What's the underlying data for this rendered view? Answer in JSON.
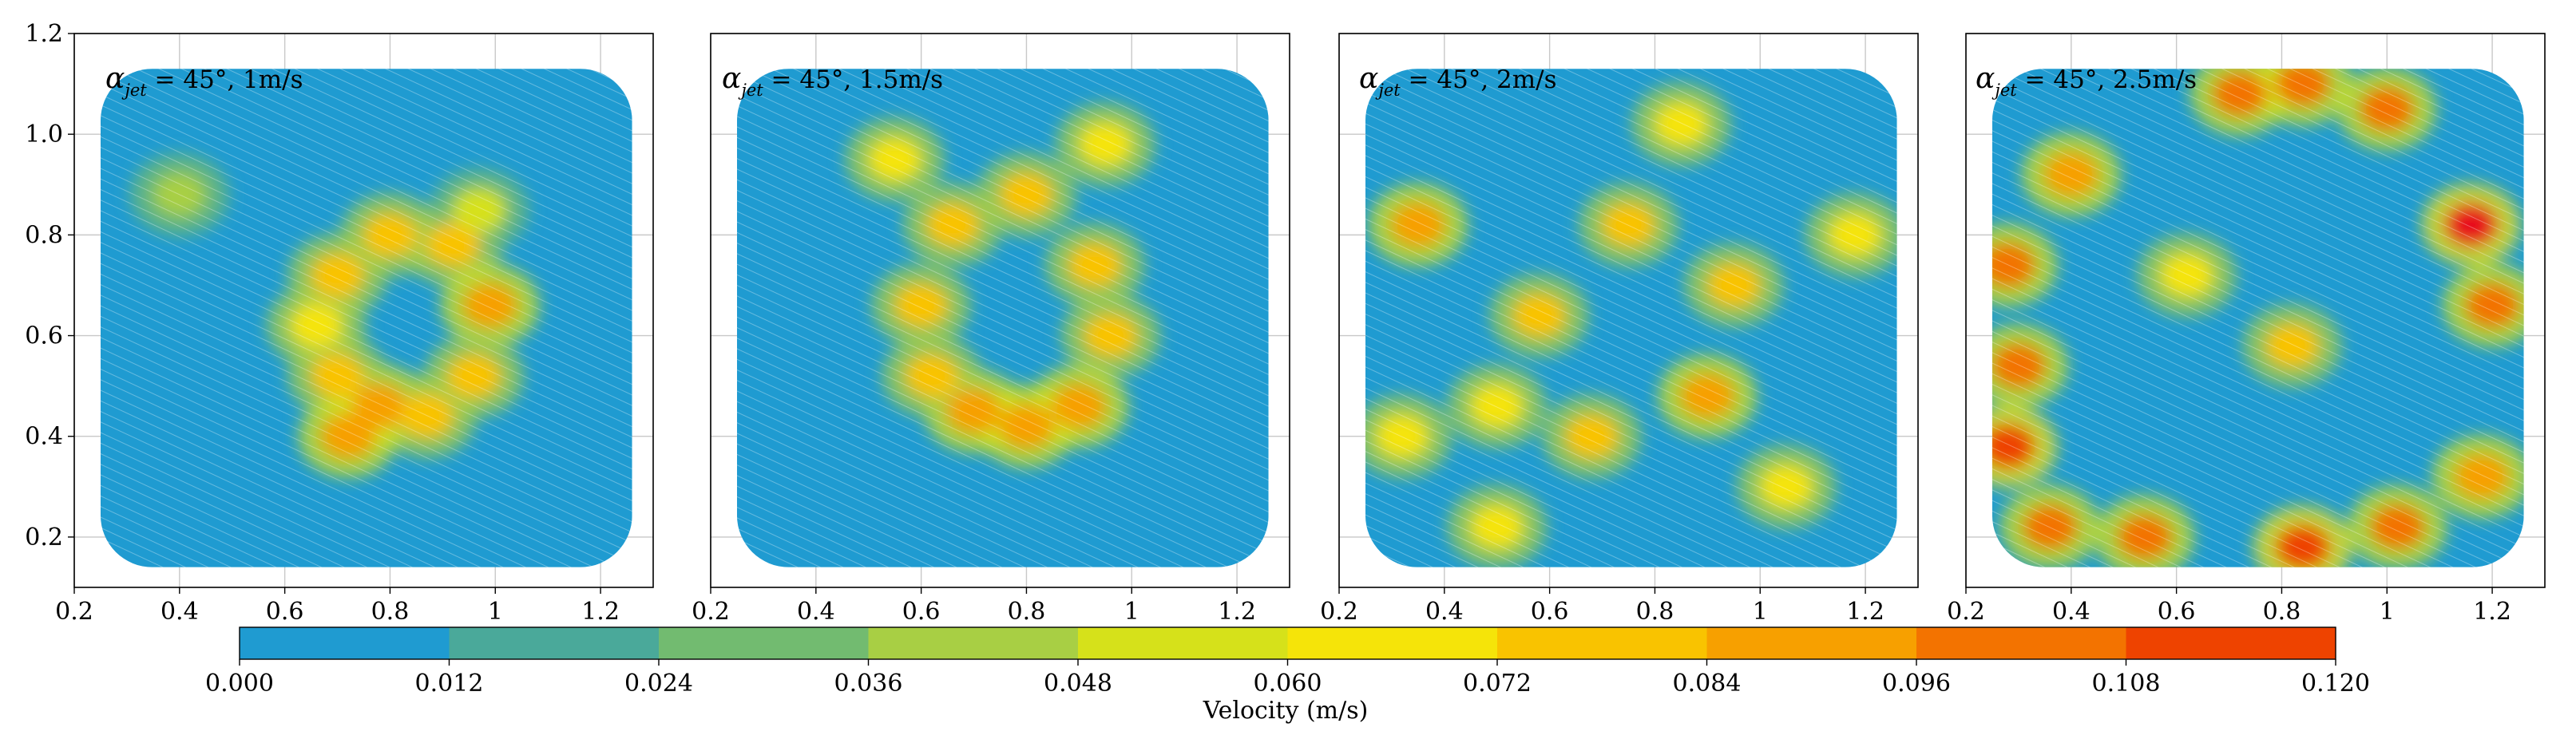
{
  "chart_data": {
    "type": "heatmap",
    "description_free": true,
    "xlim": [
      0.2,
      1.3
    ],
    "ylim": [
      0.1,
      1.2
    ],
    "x_ticks": [
      "0.2",
      "0.4",
      "0.6",
      "0.8",
      "1",
      "1.2"
    ],
    "y_ticks": [
      "0.2",
      "0.4",
      "0.6",
      "0.8",
      "1.0",
      "1.2"
    ],
    "grid": true,
    "field_extent": {
      "x": [
        0.25,
        1.26
      ],
      "y": [
        0.14,
        1.13
      ]
    },
    "panels": [
      {
        "label_symbol": "α",
        "label_sub": "jet",
        "label_rest": " = 45°, 1m/s",
        "hotspots": [
          {
            "x": 0.78,
            "y": 0.46,
            "v": 0.078
          },
          {
            "x": 0.7,
            "y": 0.52,
            "v": 0.068
          },
          {
            "x": 0.66,
            "y": 0.62,
            "v": 0.062
          },
          {
            "x": 0.7,
            "y": 0.72,
            "v": 0.066
          },
          {
            "x": 0.8,
            "y": 0.8,
            "v": 0.068
          },
          {
            "x": 0.92,
            "y": 0.78,
            "v": 0.066
          },
          {
            "x": 0.99,
            "y": 0.66,
            "v": 0.078
          },
          {
            "x": 0.96,
            "y": 0.52,
            "v": 0.074
          },
          {
            "x": 0.87,
            "y": 0.44,
            "v": 0.07
          },
          {
            "x": 0.72,
            "y": 0.4,
            "v": 0.082
          },
          {
            "x": 0.97,
            "y": 0.85,
            "v": 0.045
          },
          {
            "x": 0.4,
            "y": 0.88,
            "v": 0.04
          }
        ]
      },
      {
        "label_symbol": "α",
        "label_sub": "jet",
        "label_rest": " = 45°, 1.5m/s",
        "hotspots": [
          {
            "x": 0.7,
            "y": 0.45,
            "v": 0.08
          },
          {
            "x": 0.62,
            "y": 0.52,
            "v": 0.072
          },
          {
            "x": 0.6,
            "y": 0.66,
            "v": 0.066
          },
          {
            "x": 0.66,
            "y": 0.82,
            "v": 0.07
          },
          {
            "x": 0.8,
            "y": 0.88,
            "v": 0.068
          },
          {
            "x": 0.93,
            "y": 0.74,
            "v": 0.07
          },
          {
            "x": 0.96,
            "y": 0.6,
            "v": 0.072
          },
          {
            "x": 0.9,
            "y": 0.46,
            "v": 0.082
          },
          {
            "x": 0.8,
            "y": 0.42,
            "v": 0.078
          },
          {
            "x": 0.55,
            "y": 0.95,
            "v": 0.06
          },
          {
            "x": 0.95,
            "y": 0.98,
            "v": 0.062
          }
        ]
      },
      {
        "label_symbol": "α",
        "label_sub": "jet",
        "label_rest": " = 45°, 2m/s",
        "hotspots": [
          {
            "x": 0.35,
            "y": 0.82,
            "v": 0.082
          },
          {
            "x": 0.58,
            "y": 0.64,
            "v": 0.074
          },
          {
            "x": 0.75,
            "y": 0.82,
            "v": 0.072
          },
          {
            "x": 0.95,
            "y": 0.7,
            "v": 0.076
          },
          {
            "x": 0.9,
            "y": 0.48,
            "v": 0.08
          },
          {
            "x": 0.68,
            "y": 0.4,
            "v": 0.074
          },
          {
            "x": 0.5,
            "y": 0.46,
            "v": 0.062
          },
          {
            "x": 1.18,
            "y": 0.8,
            "v": 0.062
          },
          {
            "x": 0.32,
            "y": 0.4,
            "v": 0.06
          },
          {
            "x": 0.85,
            "y": 1.02,
            "v": 0.06
          },
          {
            "x": 1.05,
            "y": 0.3,
            "v": 0.062
          },
          {
            "x": 0.5,
            "y": 0.22,
            "v": 0.058
          }
        ]
      },
      {
        "label_symbol": "α",
        "label_sub": "jet",
        "label_rest": " = 45°, 2.5m/s",
        "hotspots": [
          {
            "x": 0.72,
            "y": 1.08,
            "v": 0.098
          },
          {
            "x": 0.84,
            "y": 1.1,
            "v": 0.096
          },
          {
            "x": 1.0,
            "y": 1.05,
            "v": 0.094
          },
          {
            "x": 1.16,
            "y": 0.82,
            "v": 0.114
          },
          {
            "x": 1.2,
            "y": 0.66,
            "v": 0.09
          },
          {
            "x": 0.28,
            "y": 0.74,
            "v": 0.094
          },
          {
            "x": 0.3,
            "y": 0.54,
            "v": 0.09
          },
          {
            "x": 0.28,
            "y": 0.38,
            "v": 0.106
          },
          {
            "x": 0.36,
            "y": 0.22,
            "v": 0.096
          },
          {
            "x": 0.54,
            "y": 0.2,
            "v": 0.098
          },
          {
            "x": 0.84,
            "y": 0.18,
            "v": 0.11
          },
          {
            "x": 1.02,
            "y": 0.22,
            "v": 0.09
          },
          {
            "x": 0.4,
            "y": 0.92,
            "v": 0.082
          },
          {
            "x": 0.82,
            "y": 0.58,
            "v": 0.07
          },
          {
            "x": 1.18,
            "y": 0.32,
            "v": 0.082
          },
          {
            "x": 0.62,
            "y": 0.72,
            "v": 0.06
          }
        ]
      }
    ],
    "colorbar": {
      "label": "Velocity (m/s)",
      "ticks": [
        "0.000",
        "0.012",
        "0.024",
        "0.036",
        "0.048",
        "0.060",
        "0.072",
        "0.084",
        "0.096",
        "0.108",
        "0.120"
      ],
      "range": [
        0.0,
        0.12
      ],
      "colors": [
        "#1f9bd1",
        "#4aa99a",
        "#72bb70",
        "#a8cf44",
        "#d6e11a",
        "#f5e409",
        "#f9c300",
        "#f7a000",
        "#f37300",
        "#ee4300",
        "#e8101c"
      ]
    }
  }
}
